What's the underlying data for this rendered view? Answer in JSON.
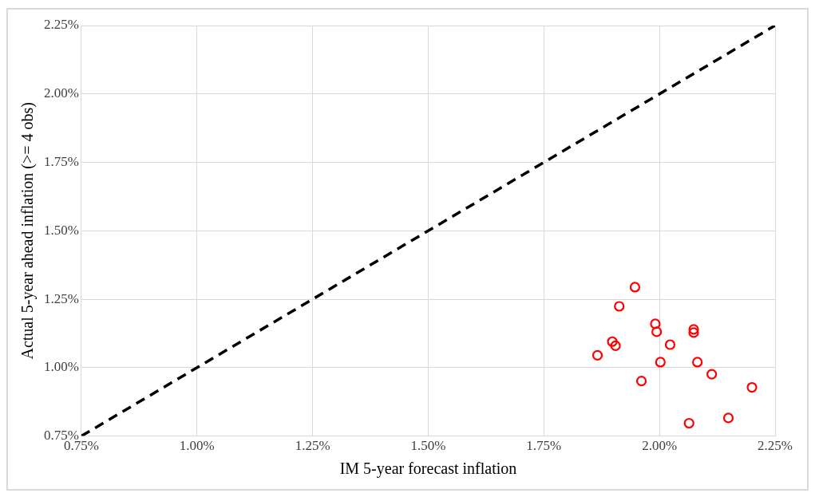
{
  "chart_data": {
    "type": "scatter",
    "xlabel": "IM 5-year forecast inflation",
    "ylabel": "Actual 5-year ahead inflation (>= 4 obs)",
    "series": [
      {
        "type": "line",
        "color": "#000000",
        "line_style": "dashed",
        "marker": "none",
        "x": [
          0.75,
          2.25
        ],
        "values": [
          0.75,
          2.25
        ]
      },
      {
        "color": "#ff0000",
        "marker": "circle",
        "x": [
          1.947,
          1.913,
          1.991,
          1.994,
          1.898,
          1.905,
          1.866,
          2.023,
          2.074,
          2.074,
          2.002,
          2.082,
          2.113,
          1.961,
          2.2,
          2.149,
          2.064
        ],
        "values": [
          1.294,
          1.224,
          1.16,
          1.131,
          1.095,
          1.08,
          1.045,
          1.084,
          1.14,
          1.128,
          1.02,
          1.02,
          0.976,
          0.951,
          0.928,
          0.816,
          0.797
        ]
      }
    ],
    "xlim": [
      0.75,
      2.25
    ],
    "ylim": [
      0.75,
      2.25
    ],
    "xticks": [
      {
        "value": 0.75,
        "label": "0.75%"
      },
      {
        "value": 1,
        "label": "1.00%"
      },
      {
        "value": 1.25,
        "label": "1.25%"
      },
      {
        "value": 1.5,
        "label": "1.50%"
      },
      {
        "value": 1.75,
        "label": "1.75%"
      },
      {
        "value": 2,
        "label": "2.00%"
      },
      {
        "value": 2.25,
        "label": "2.25%"
      }
    ],
    "yticks": [
      {
        "value": 0.75,
        "label": "0.75%"
      },
      {
        "value": 1,
        "label": "1.00%"
      },
      {
        "value": 1.25,
        "label": "1.25%"
      },
      {
        "value": 1.5,
        "label": "1.50%"
      },
      {
        "value": 1.75,
        "label": "1.75%"
      },
      {
        "value": 2,
        "label": "2.00%"
      },
      {
        "value": 2.25,
        "label": "2.25%"
      }
    ],
    "grid": true,
    "legend": false
  }
}
